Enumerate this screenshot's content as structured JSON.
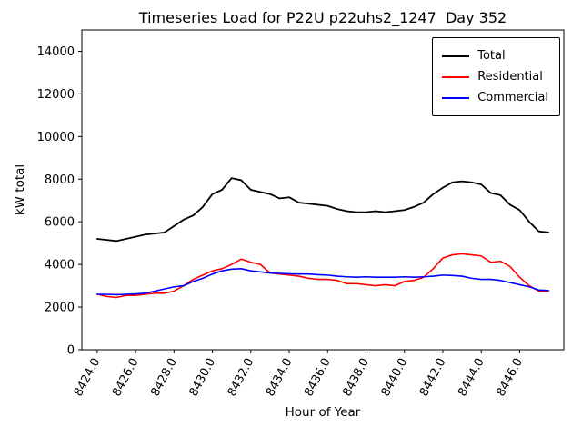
{
  "chart_data": {
    "type": "line",
    "title": "Timeseries Load for P22U p22uhs2_1247  Day 352",
    "xlabel": "Hour of Year",
    "ylabel": "kW total",
    "xlim": [
      8423.2,
      8448.3
    ],
    "ylim": [
      0,
      15000
    ],
    "grid": false,
    "legend_position": "upper right",
    "x_ticks": [
      8424,
      8426,
      8428,
      8430,
      8432,
      8434,
      8436,
      8438,
      8440,
      8442,
      8444,
      8446
    ],
    "x_tick_labels": [
      "8424.0",
      "8426.0",
      "8428.0",
      "8430.0",
      "8432.0",
      "8434.0",
      "8436.0",
      "8438.0",
      "8440.0",
      "8442.0",
      "8444.0",
      "8446.0"
    ],
    "y_ticks": [
      0,
      2000,
      4000,
      6000,
      8000,
      10000,
      12000,
      14000
    ],
    "y_tick_labels": [
      "0",
      "2000",
      "4000",
      "6000",
      "8000",
      "10000",
      "12000",
      "14000"
    ],
    "x": [
      8424.0,
      8424.5,
      8425.0,
      8425.5,
      8426.0,
      8426.5,
      8427.0,
      8427.5,
      8428.0,
      8428.5,
      8429.0,
      8429.5,
      8430.0,
      8430.5,
      8431.0,
      8431.5,
      8432.0,
      8432.5,
      8433.0,
      8433.5,
      8434.0,
      8434.5,
      8435.0,
      8435.5,
      8436.0,
      8436.5,
      8437.0,
      8437.5,
      8438.0,
      8438.5,
      8439.0,
      8439.5,
      8440.0,
      8440.5,
      8441.0,
      8441.5,
      8442.0,
      8442.5,
      8443.0,
      8443.5,
      8444.0,
      8444.5,
      8445.0,
      8445.5,
      8446.0,
      8446.5,
      8447.0,
      8447.5
    ],
    "series": [
      {
        "name": "Total",
        "color": "#000000",
        "values": [
          5200,
          5150,
          5100,
          5200,
          5300,
          5400,
          5450,
          5500,
          5800,
          6100,
          6300,
          6700,
          7300,
          7500,
          8050,
          7950,
          7500,
          7400,
          7300,
          7100,
          7150,
          6900,
          6850,
          6800,
          6750,
          6600,
          6500,
          6450,
          6450,
          6500,
          6450,
          6500,
          6550,
          6700,
          6900,
          7300,
          7600,
          7850,
          7900,
          7850,
          7750,
          7350,
          7250,
          6800,
          6550,
          6000,
          5550,
          5500
        ]
      },
      {
        "name": "Residential",
        "color": "#ff0000",
        "values": [
          2600,
          2500,
          2450,
          2550,
          2550,
          2600,
          2650,
          2650,
          2750,
          3000,
          3300,
          3500,
          3700,
          3800,
          4000,
          4250,
          4100,
          4000,
          3600,
          3550,
          3500,
          3450,
          3350,
          3300,
          3300,
          3250,
          3100,
          3100,
          3050,
          3000,
          3050,
          3000,
          3200,
          3250,
          3400,
          3800,
          4300,
          4450,
          4500,
          4450,
          4400,
          4100,
          4150,
          3900,
          3400,
          3000,
          2750,
          2750
        ]
      },
      {
        "name": "Commercial",
        "color": "#0000ff",
        "values": [
          2600,
          2600,
          2580,
          2600,
          2620,
          2650,
          2750,
          2850,
          2950,
          3000,
          3200,
          3350,
          3550,
          3700,
          3780,
          3800,
          3700,
          3650,
          3600,
          3580,
          3560,
          3550,
          3550,
          3520,
          3500,
          3450,
          3420,
          3400,
          3420,
          3400,
          3400,
          3400,
          3420,
          3400,
          3420,
          3450,
          3500,
          3480,
          3450,
          3350,
          3300,
          3300,
          3250,
          3150,
          3050,
          2950,
          2800,
          2780
        ]
      }
    ]
  }
}
